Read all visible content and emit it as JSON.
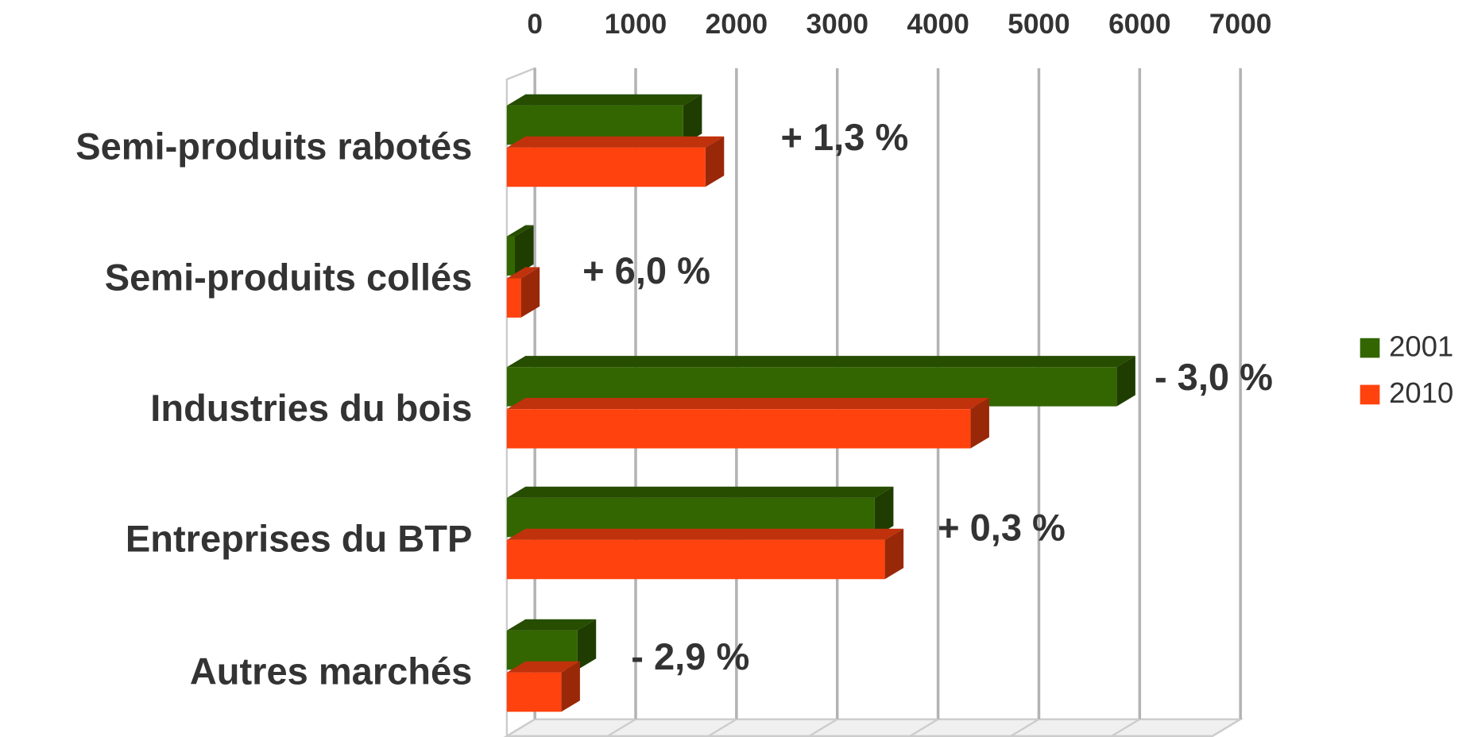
{
  "chart_data": {
    "type": "bar",
    "orientation": "horizontal",
    "three_d": true,
    "categories": [
      "Semi-produits rabotés",
      "Semi-produits collés",
      "Industries du bois",
      "Entreprises du BTP",
      "Autres marchés"
    ],
    "series": [
      {
        "name": "2001",
        "color": "#336600",
        "values": [
          1750,
          80,
          6050,
          3650,
          700
        ]
      },
      {
        "name": "2010",
        "color": "#ff420e",
        "values": [
          1970,
          140,
          4600,
          3750,
          540
        ]
      }
    ],
    "annotations": [
      "+ 1,3 %",
      "+ 6,0 %",
      "- 3,0 %",
      "+ 0,3 %",
      "- 2,9 %"
    ],
    "xlim": [
      0,
      7000
    ],
    "xticks": [
      0,
      1000,
      2000,
      3000,
      4000,
      5000,
      6000,
      7000
    ],
    "grid": true,
    "legend": "right"
  }
}
